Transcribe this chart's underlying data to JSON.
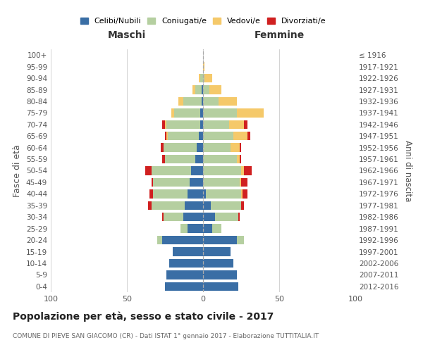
{
  "age_groups": [
    "0-4",
    "5-9",
    "10-14",
    "15-19",
    "20-24",
    "25-29",
    "30-34",
    "35-39",
    "40-44",
    "45-49",
    "50-54",
    "55-59",
    "60-64",
    "65-69",
    "70-74",
    "75-79",
    "80-84",
    "85-89",
    "90-94",
    "95-99",
    "100+"
  ],
  "birth_years": [
    "2012-2016",
    "2007-2011",
    "2002-2006",
    "1997-2001",
    "1992-1996",
    "1987-1991",
    "1982-1986",
    "1977-1981",
    "1972-1976",
    "1967-1971",
    "1962-1966",
    "1957-1961",
    "1952-1956",
    "1947-1951",
    "1942-1946",
    "1937-1941",
    "1932-1936",
    "1927-1931",
    "1922-1926",
    "1917-1921",
    "≤ 1916"
  ],
  "male": {
    "celibi": [
      25,
      24,
      22,
      20,
      27,
      10,
      13,
      12,
      10,
      9,
      8,
      5,
      4,
      3,
      2,
      2,
      1,
      1,
      0,
      0,
      0
    ],
    "coniugati": [
      0,
      0,
      0,
      0,
      3,
      5,
      13,
      22,
      23,
      24,
      26,
      20,
      22,
      20,
      22,
      17,
      12,
      4,
      2,
      0,
      0
    ],
    "vedovi": [
      0,
      0,
      0,
      0,
      0,
      0,
      0,
      0,
      0,
      0,
      0,
      0,
      0,
      1,
      1,
      2,
      3,
      2,
      1,
      0,
      0
    ],
    "divorziati": [
      0,
      0,
      0,
      0,
      0,
      0,
      1,
      2,
      2,
      1,
      4,
      2,
      2,
      1,
      2,
      0,
      0,
      0,
      0,
      0,
      0
    ]
  },
  "female": {
    "nubili": [
      23,
      22,
      20,
      18,
      22,
      6,
      8,
      5,
      2,
      0,
      0,
      0,
      0,
      0,
      0,
      0,
      0,
      0,
      0,
      0,
      0
    ],
    "coniugate": [
      0,
      0,
      0,
      0,
      5,
      6,
      15,
      20,
      23,
      24,
      25,
      22,
      18,
      20,
      17,
      22,
      10,
      4,
      1,
      0,
      0
    ],
    "vedove": [
      0,
      0,
      0,
      0,
      0,
      0,
      0,
      0,
      1,
      1,
      2,
      2,
      6,
      9,
      10,
      18,
      12,
      8,
      5,
      1,
      0
    ],
    "divorziate": [
      0,
      0,
      0,
      0,
      0,
      0,
      1,
      2,
      3,
      4,
      5,
      1,
      1,
      2,
      2,
      0,
      0,
      0,
      0,
      0,
      0
    ]
  },
  "colors": {
    "celibi": "#3a6ea5",
    "coniugati": "#b5cfa0",
    "vedovi": "#f5c96a",
    "divorziati": "#d02020"
  },
  "title": "Popolazione per età, sesso e stato civile - 2017",
  "subtitle": "COMUNE DI PIEVE SAN GIACOMO (CR) - Dati ISTAT 1° gennaio 2017 - Elaborazione TUTTITALIA.IT",
  "xlabel_left": "Maschi",
  "xlabel_right": "Femmine",
  "ylabel_left": "Fasce di età",
  "ylabel_right": "Anni di nascita",
  "legend_labels": [
    "Celibi/Nubili",
    "Coniugati/e",
    "Vedovi/e",
    "Divorziati/e"
  ],
  "xlim": 100,
  "background_color": "#ffffff",
  "grid_color": "#cccccc"
}
